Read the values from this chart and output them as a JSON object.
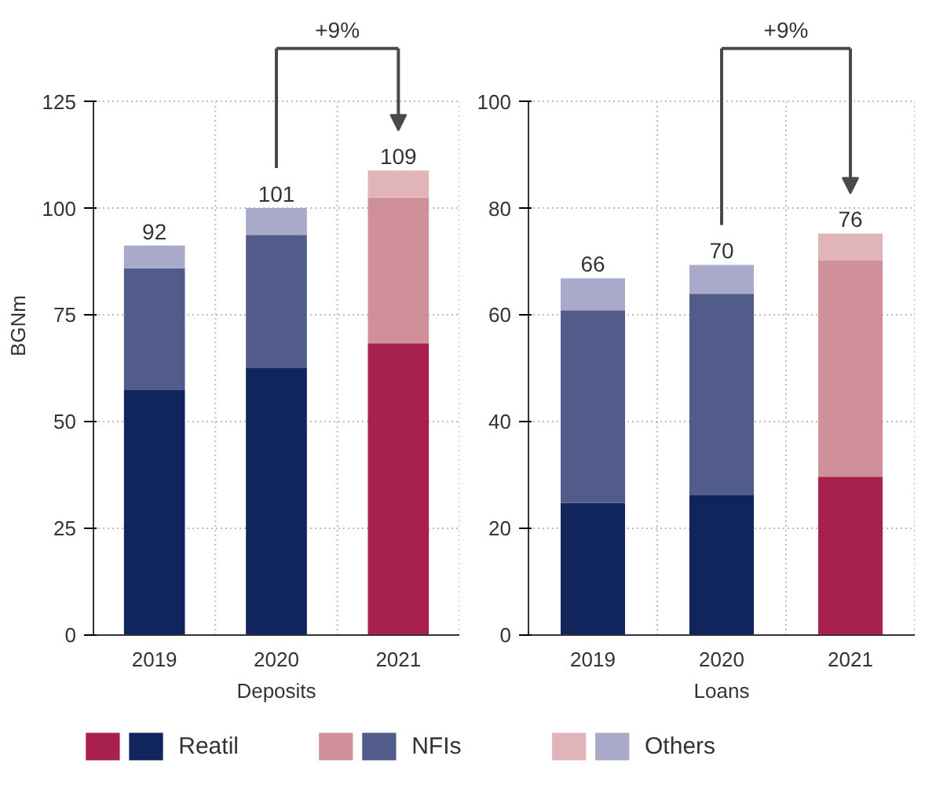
{
  "chart_data": [
    {
      "type": "bar",
      "stacked": true,
      "xlabel": "Deposits",
      "ylabel": "BGNm",
      "categories": [
        "2019",
        "2020",
        "2021"
      ],
      "series": [
        {
          "name": "Reatil",
          "colors": [
            "#10255b",
            "#10255b",
            "#a8204c"
          ],
          "values": [
            57.4,
            62.7,
            68.4
          ]
        },
        {
          "name": "NFIs",
          "colors": [
            "#525c8b",
            "#525c8b",
            "#d0909a"
          ],
          "values": [
            28.6,
            31.1,
            34.2
          ]
        },
        {
          "name": "Others",
          "colors": [
            "#a9a9c9",
            "#a9a9c9",
            "#e0b4b9"
          ],
          "values": [
            5.3,
            6.3,
            6.3
          ]
        }
      ],
      "totals": [
        "92",
        "101",
        "109"
      ],
      "annotations": [
        "+9%"
      ],
      "ylim": [
        0,
        125
      ],
      "yticks": [
        0,
        25,
        50,
        75,
        100,
        125
      ],
      "grid": true,
      "legend": "bottom"
    },
    {
      "type": "bar",
      "stacked": true,
      "xlabel": "Loans",
      "categories": [
        "2019",
        "2020",
        "2021"
      ],
      "series": [
        {
          "name": "Reatil",
          "colors": [
            "#10255b",
            "#10255b",
            "#a8204c"
          ],
          "values": [
            24.8,
            26.2,
            29.7
          ]
        },
        {
          "name": "NFIs",
          "colors": [
            "#525c8b",
            "#525c8b",
            "#d0909a"
          ],
          "values": [
            36.1,
            37.8,
            40.5
          ]
        },
        {
          "name": "Others",
          "colors": [
            "#a9a9c9",
            "#a9a9c9",
            "#e0b4b9"
          ],
          "values": [
            6.0,
            5.4,
            5.1
          ]
        }
      ],
      "totals": [
        "66",
        "70",
        "76"
      ],
      "annotations": [
        "+9%"
      ],
      "ylim": [
        0,
        100
      ],
      "yticks": [
        0,
        20,
        40,
        60,
        80,
        100
      ],
      "grid": true,
      "legend": "bottom"
    }
  ]
}
